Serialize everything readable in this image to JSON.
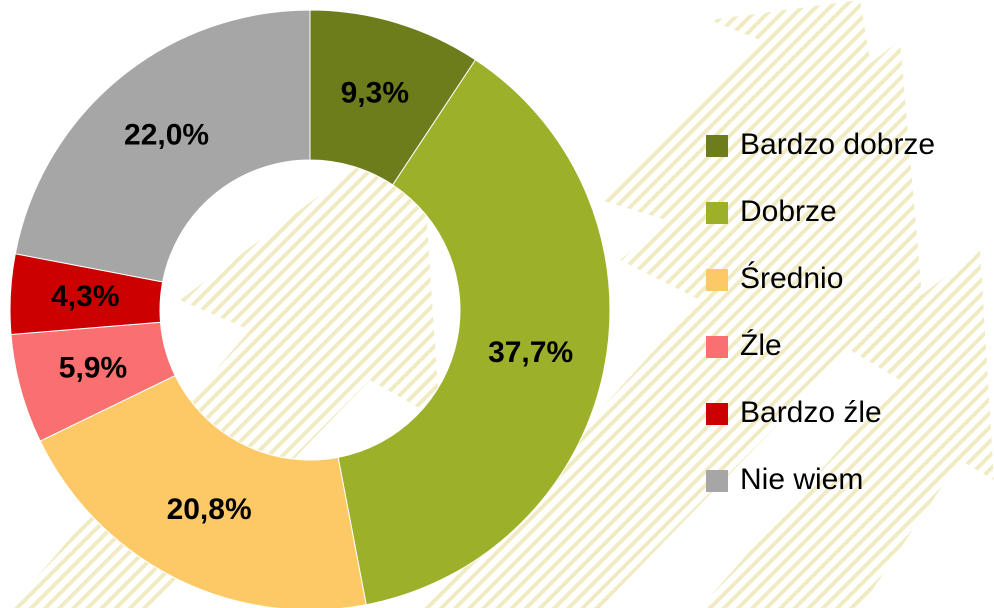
{
  "chart_data": {
    "type": "pie",
    "categories": [
      "Bardzo dobrze",
      "Dobrze",
      "Średnio",
      "Źle",
      "Bardzo źle",
      "Nie wiem"
    ],
    "values": [
      9.3,
      37.7,
      20.8,
      5.9,
      4.3,
      22.0
    ],
    "value_labels": [
      "9,3%",
      "37,7%",
      "20,8%",
      "5,9%",
      "4,3%",
      "22,0%"
    ],
    "colors": [
      "#6e7d1c",
      "#9db02a",
      "#fdc966",
      "#fa6f6f",
      "#cc0000",
      "#a6a6a6"
    ],
    "legend": "right"
  }
}
